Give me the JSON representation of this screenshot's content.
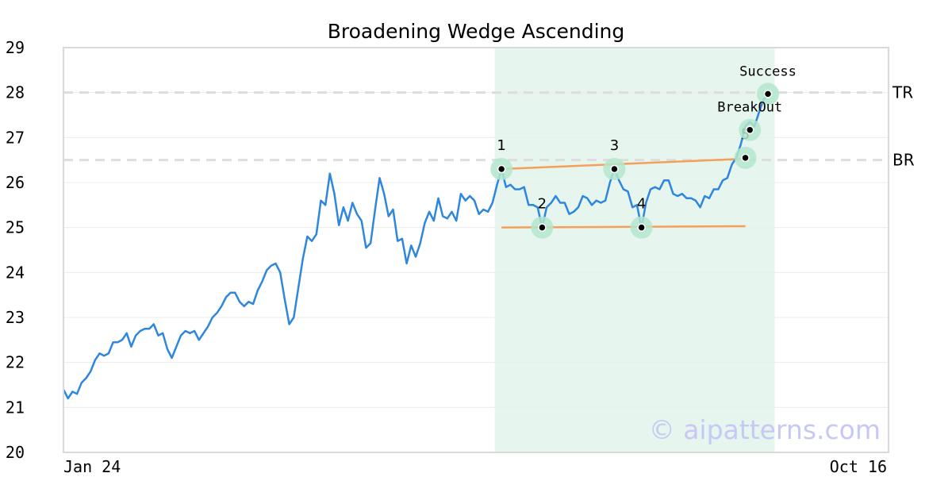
{
  "chart_data": {
    "type": "line",
    "title": "Broadening Wedge Ascending",
    "xlabel": "",
    "ylabel": "",
    "ylim": [
      20,
      29
    ],
    "yticks": [
      "20",
      "21",
      "22",
      "23",
      "24",
      "25",
      "26",
      "27",
      "28",
      "29"
    ],
    "x_tick_labels": [
      "Jan 24",
      "Oct 16"
    ],
    "grid": true,
    "series": [
      {
        "values": [
          21.4,
          21.2,
          21.35,
          21.3,
          21.55,
          21.65,
          21.8,
          22.05,
          22.2,
          22.15,
          22.2,
          22.45,
          22.45,
          22.5,
          22.65,
          22.35,
          22.6,
          22.7,
          22.75,
          22.75,
          22.85,
          22.6,
          22.65,
          22.3,
          22.1,
          22.35,
          22.6,
          22.7,
          22.65,
          22.7,
          22.5,
          22.65,
          22.8,
          23.0,
          23.1,
          23.25,
          23.45,
          23.55,
          23.55,
          23.35,
          23.25,
          23.35,
          23.3,
          23.6,
          23.8,
          24.05,
          24.15,
          24.2,
          24.0,
          23.4,
          22.85,
          23.0,
          23.65,
          24.3,
          24.8,
          24.7,
          24.85,
          25.6,
          25.5,
          26.2,
          25.75,
          25.05,
          25.45,
          25.15,
          25.55,
          25.3,
          25.15,
          24.55,
          24.65,
          25.4,
          26.1,
          25.75,
          25.25,
          25.4,
          24.7,
          24.75,
          24.2,
          24.6,
          24.35,
          24.65,
          25.1,
          25.35,
          25.15,
          25.65,
          25.25,
          25.2,
          25.35,
          25.15,
          25.75,
          25.6,
          25.7,
          25.6,
          25.3,
          25.4,
          25.35,
          25.55,
          25.95,
          26.3,
          25.9,
          25.95,
          25.85,
          25.85,
          25.9,
          25.5,
          25.5,
          25.45,
          25.0,
          25.45,
          25.55,
          25.7,
          25.55,
          25.55,
          25.3,
          25.35,
          25.45,
          25.7,
          25.65,
          25.5,
          25.6,
          25.55,
          25.6,
          26.0,
          26.3,
          26.05,
          25.85,
          25.8,
          25.45,
          25.5,
          25.0,
          25.55,
          25.85,
          25.9,
          25.85,
          26.05,
          26.05,
          25.75,
          25.7,
          25.75,
          25.65,
          25.65,
          25.6,
          25.45,
          25.7,
          25.65,
          25.85,
          25.85,
          26.05,
          26.1,
          26.4,
          26.55,
          26.85,
          27.25,
          27.35,
          27.25,
          27.55,
          27.85,
          27.95
        ],
        "color": "#2e86de"
      }
    ],
    "pattern_points": [
      {
        "label": "1",
        "index": 97,
        "value": 26.3
      },
      {
        "label": "2",
        "index": 106,
        "value": 25.0
      },
      {
        "label": "3",
        "index": 122,
        "value": 26.3
      },
      {
        "label": "4",
        "index": 128,
        "value": 25.0
      },
      {
        "label": "5",
        "index": 151,
        "value": 26.55
      },
      {
        "label": "",
        "index": 152,
        "value": 27.17
      },
      {
        "label": "",
        "index": 156,
        "value": 27.97
      }
    ],
    "trend_lines": [
      {
        "from_index": 97,
        "from_value": 26.3,
        "to_index": 151,
        "to_value": 26.53
      },
      {
        "from_index": 97,
        "from_value": 25.0,
        "to_index": 151,
        "to_value": 25.03
      }
    ],
    "shaded_region": {
      "from_index": 95.5,
      "to_index": 157.5
    },
    "reference_lines": [
      {
        "label": "TR",
        "value": 28.0
      },
      {
        "label": "BR",
        "value": 26.5
      }
    ],
    "annotations": [
      {
        "text": "Success",
        "index": 156,
        "value": 27.97
      },
      {
        "text": "BreakOut",
        "index": 152,
        "value": 27.17
      }
    ],
    "watermark": "© aipatterns.com",
    "colors": {
      "line": "#2e86de",
      "trend": "#f5a05a",
      "marker_glow": "#b3e6cc",
      "shade": "#e6f5ee",
      "reference": "#dddddd",
      "watermark": "#c8c8f4"
    }
  }
}
